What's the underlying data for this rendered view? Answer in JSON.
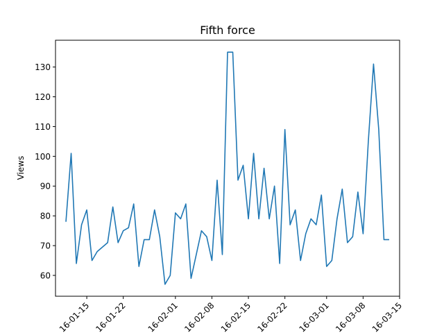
{
  "chart_data": {
    "type": "line",
    "title": "Fifth force",
    "xlabel": "",
    "ylabel": "Views",
    "x_start_date": "2016-01-11",
    "xlim": [
      "2016-01-09",
      "2016-03-15"
    ],
    "ylim": [
      53,
      139
    ],
    "x_tick_dates": [
      "2016-01-15",
      "2016-01-22",
      "2016-02-01",
      "2016-02-08",
      "2016-02-15",
      "2016-02-22",
      "2016-03-01",
      "2016-03-08",
      "2016-03-15"
    ],
    "x_tick_labels": [
      "16-01-15",
      "16-01-22",
      "16-02-01",
      "16-02-08",
      "16-02-15",
      "16-02-22",
      "16-03-01",
      "16-03-08",
      "16-03-15"
    ],
    "y_ticks": [
      60,
      70,
      80,
      90,
      100,
      110,
      120,
      130
    ],
    "grid": false,
    "series": [
      {
        "color": "#1f77b4",
        "x": [
          "2016-01-11",
          "2016-01-12",
          "2016-01-13",
          "2016-01-14",
          "2016-01-15",
          "2016-01-16",
          "2016-01-17",
          "2016-01-19",
          "2016-01-20",
          "2016-01-21",
          "2016-01-22",
          "2016-01-23",
          "2016-01-24",
          "2016-01-25",
          "2016-01-26",
          "2016-01-27",
          "2016-01-28",
          "2016-01-29",
          "2016-01-30",
          "2016-01-31",
          "2016-02-01",
          "2016-02-02",
          "2016-02-03",
          "2016-02-04",
          "2016-02-05",
          "2016-02-06",
          "2016-02-07",
          "2016-02-08",
          "2016-02-09",
          "2016-02-10",
          "2016-02-11",
          "2016-02-12",
          "2016-02-13",
          "2016-02-14",
          "2016-02-15",
          "2016-02-16",
          "2016-02-17",
          "2016-02-18",
          "2016-02-19",
          "2016-02-20",
          "2016-02-21",
          "2016-02-22",
          "2016-02-23",
          "2016-02-24",
          "2016-02-25",
          "2016-02-26",
          "2016-02-27",
          "2016-02-28",
          "2016-02-29",
          "2016-03-01",
          "2016-03-02",
          "2016-03-03",
          "2016-03-04",
          "2016-03-05",
          "2016-03-06",
          "2016-03-07",
          "2016-03-08",
          "2016-03-09",
          "2016-03-10",
          "2016-03-11",
          "2016-03-12",
          "2016-03-13"
        ],
        "y": [
          78,
          101,
          64,
          77,
          82,
          65,
          68,
          71,
          83,
          71,
          75,
          76,
          84,
          63,
          72,
          72,
          82,
          73,
          57,
          60,
          81,
          79,
          84,
          59,
          67,
          75,
          73,
          65,
          92,
          67,
          135,
          135,
          92,
          97,
          79,
          101,
          79,
          96,
          79,
          90,
          64,
          109,
          77,
          82,
          65,
          74,
          79,
          77,
          87,
          63,
          65,
          79,
          89,
          71,
          73,
          88,
          74,
          105,
          131,
          109,
          72,
          72
        ]
      }
    ]
  }
}
